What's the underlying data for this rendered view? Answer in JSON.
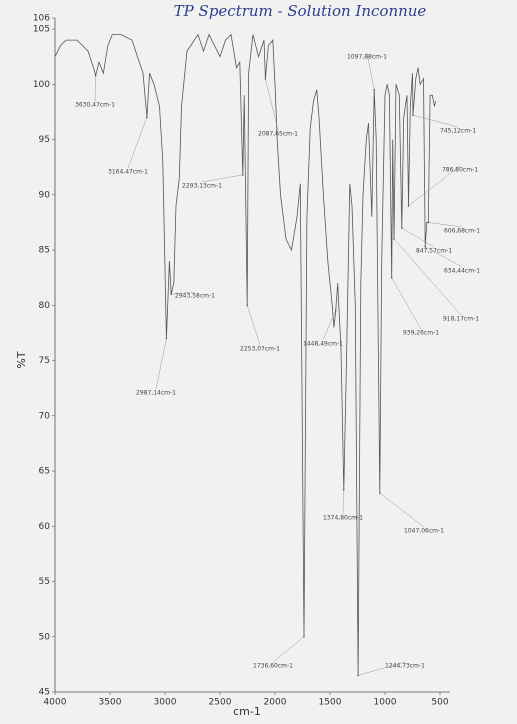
{
  "chart_data": {
    "type": "line",
    "title": "TP Spectrum - Solution Inconnue",
    "x_label": "cm-1",
    "y_label": "%T",
    "xlim": [
      4000,
      500
    ],
    "xticks": [
      4000,
      3500,
      3000,
      2500,
      2000,
      1500,
      1000,
      500
    ],
    "ylim": [
      45,
      106
    ],
    "yticks": [
      45,
      50,
      55,
      60,
      65,
      70,
      75,
      80,
      85,
      90,
      95,
      100,
      105,
      106
    ],
    "x": [
      4000,
      3950,
      3900,
      3800,
      3750,
      3700,
      3650,
      3630.47,
      3600,
      3560,
      3520,
      3480,
      3400,
      3300,
      3250,
      3200,
      3164.47,
      3140,
      3100,
      3050,
      3020,
      2987.14,
      2960,
      2943.58,
      2920,
      2900,
      2870,
      2850,
      2800,
      2700,
      2650,
      2600,
      2550,
      2500,
      2450,
      2400,
      2350,
      2320,
      2293.13,
      2280,
      2253.07,
      2240,
      2200,
      2150,
      2100,
      2087.65,
      2060,
      2020,
      2000,
      1980,
      1950,
      1900,
      1850,
      1800,
      1770,
      1736.6,
      1710,
      1680,
      1650,
      1620,
      1600,
      1560,
      1520,
      1480,
      1465,
      1448.49,
      1430,
      1400,
      1374.8,
      1350,
      1320,
      1300,
      1270,
      1244.73,
      1220,
      1200,
      1170,
      1150,
      1120,
      1097.88,
      1080,
      1047.06,
      1030,
      1000,
      980,
      960,
      939.26,
      930,
      918.17,
      900,
      870,
      847.57,
      830,
      800,
      786.8,
      770,
      750,
      745.12,
      720,
      700,
      680,
      650,
      634.44,
      620,
      606.68,
      590,
      570,
      550,
      540
    ],
    "series": [
      {
        "name": "%T",
        "color": "#555555",
        "values": [
          102.5,
          103.5,
          104,
          104,
          103.5,
          103,
          101.5,
          100.8,
          102,
          101,
          103.5,
          104.5,
          104.5,
          104,
          102.5,
          101,
          97,
          101,
          100,
          98,
          93,
          77,
          84,
          81,
          82,
          89,
          91.5,
          98,
          103,
          104.5,
          103,
          104.5,
          103.5,
          102.5,
          104,
          104.5,
          101.5,
          102,
          91.8,
          99,
          80,
          101,
          104.5,
          102.5,
          104,
          100.5,
          103.5,
          104,
          100,
          95,
          90,
          86,
          85,
          88,
          91,
          50,
          88,
          96,
          98.5,
          99.5,
          97,
          90,
          84,
          80,
          78,
          79.5,
          82,
          76,
          63.3,
          75,
          91,
          89,
          80,
          46.5,
          82,
          90,
          95,
          96.5,
          88,
          99.5,
          95,
          63,
          84,
          99,
          100,
          99,
          82.5,
          95,
          86,
          100,
          99,
          87,
          97,
          99,
          89,
          98,
          101,
          97.2,
          100.5,
          101.5,
          100,
          100.5,
          85.3,
          87.5,
          87.5,
          99,
          99,
          98,
          98.5
        ]
      }
    ],
    "annotations": [
      {
        "text": "3630,47cm-1",
        "x": 3630.47,
        "y": 100.8
      },
      {
        "text": "3164,47cm-1",
        "x": 3164.47,
        "y": 97
      },
      {
        "text": "2987,14cm-1",
        "x": 2987.14,
        "y": 77
      },
      {
        "text": "2943,58cm-1",
        "x": 2943.58,
        "y": 81
      },
      {
        "text": "2293,13cm-1",
        "x": 2293.13,
        "y": 91.8
      },
      {
        "text": "2253,07cm-1",
        "x": 2253.07,
        "y": 80
      },
      {
        "text": "2087,65cm-1",
        "x": 2087.65,
        "y": 100.5
      },
      {
        "text": "1736,60cm-1",
        "x": 1736.6,
        "y": 50
      },
      {
        "text": "1448,49cm-1",
        "x": 1448.49,
        "y": 79.5
      },
      {
        "text": "1374,80cm-1",
        "x": 1374.8,
        "y": 63.3
      },
      {
        "text": "1244,73cm-1",
        "x": 1244.73,
        "y": 46.5
      },
      {
        "text": "1097,88cm-1",
        "x": 1097.88,
        "y": 99.5
      },
      {
        "text": "1047,06cm-1",
        "x": 1047.06,
        "y": 63
      },
      {
        "text": "939,26cm-1",
        "x": 939.26,
        "y": 82.5
      },
      {
        "text": "918,17cm-1",
        "x": 918.17,
        "y": 86
      },
      {
        "text": "847,57cm-1",
        "x": 847.57,
        "y": 87
      },
      {
        "text": "634,44cm-1",
        "x": 634.44,
        "y": 85.3
      },
      {
        "text": "606,68cm-1",
        "x": 606.68,
        "y": 87.5
      },
      {
        "text": "786,80cm-1",
        "x": 786.8,
        "y": 89
      },
      {
        "text": "745,12cm-1",
        "x": 745.12,
        "y": 97.2
      }
    ]
  }
}
